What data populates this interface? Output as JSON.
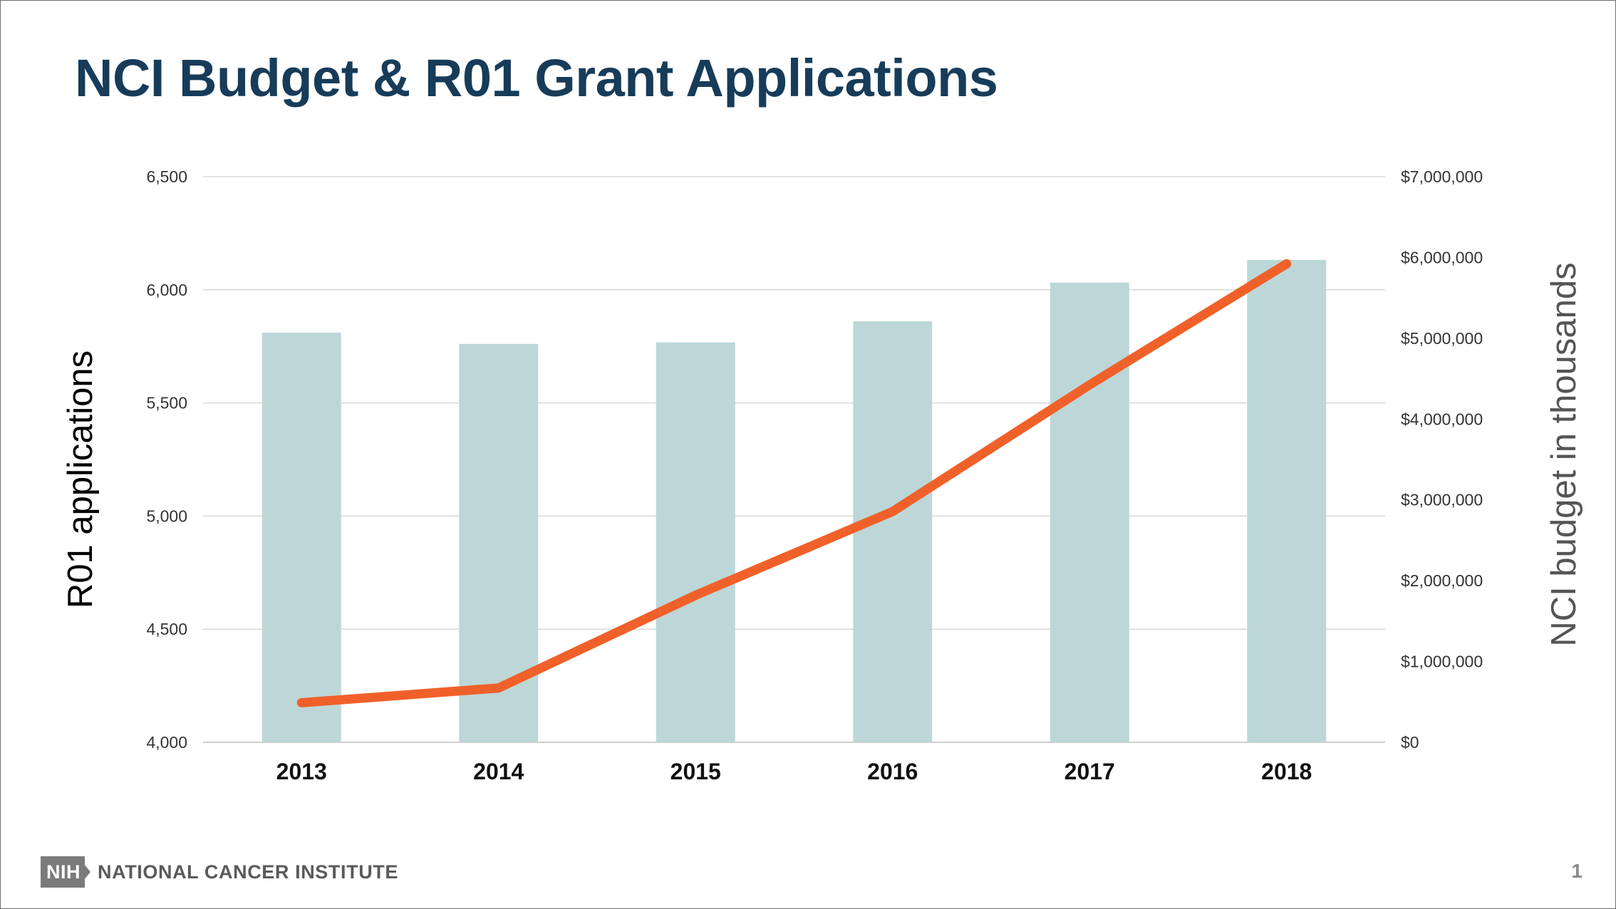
{
  "slide": {
    "title": "NCI Budget & R01 Grant Applications",
    "page_number": "1"
  },
  "footer": {
    "badge": "NIH",
    "org_name": "NATIONAL CANCER INSTITUTE"
  },
  "colors": {
    "title": "#173c5a",
    "bar": "#bdd7d8",
    "line": "#f0612a",
    "grid": "#d9d9d9"
  },
  "chart_data": {
    "type": "bar+line",
    "title": "NCI Budget & R01 Grant Applications",
    "categories": [
      "2013",
      "2014",
      "2015",
      "2016",
      "2017",
      "2018"
    ],
    "left_axis": {
      "label": "R01 applications",
      "range": [
        4000,
        6500
      ],
      "ticks": [
        "4,000",
        "4,500",
        "5,000",
        "5,500",
        "6,000",
        "6,500"
      ],
      "tick_values": [
        4000,
        4500,
        5000,
        5500,
        6000,
        6500
      ]
    },
    "right_axis": {
      "label": "NCI budget in thousands",
      "range": [
        0,
        7000000
      ],
      "ticks": [
        "$0",
        "$1,000,000",
        "$2,000,000",
        "$3,000,000",
        "$4,000,000",
        "$5,000,000",
        "$6,000,000",
        "$7,000,000"
      ],
      "tick_values": [
        0,
        1000000,
        2000000,
        3000000,
        4000000,
        5000000,
        6000000,
        7000000
      ]
    },
    "series": [
      {
        "name": "NCI budget in thousands",
        "type": "bar",
        "axis": "right",
        "values": [
          5070000,
          4930000,
          4950000,
          5210000,
          5690000,
          5970000
        ]
      },
      {
        "name": "R01 applications",
        "type": "line",
        "axis": "left",
        "values": [
          4175,
          4240,
          4650,
          5020,
          5580,
          6115
        ]
      }
    ],
    "grid": true
  }
}
